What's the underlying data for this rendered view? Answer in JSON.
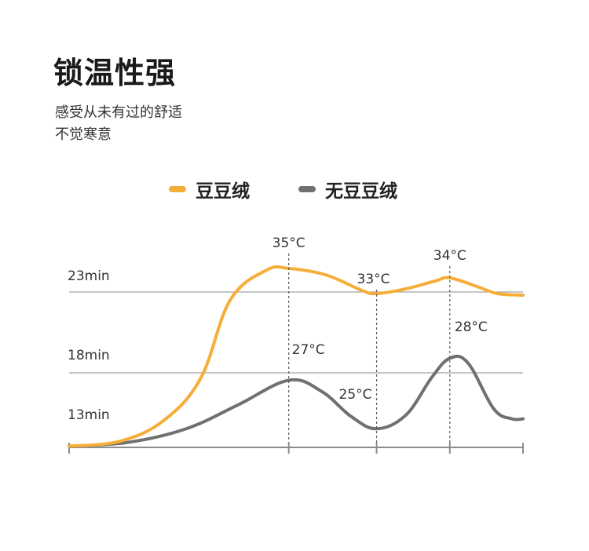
{
  "header": {
    "title": "锁温性强",
    "subtitle_lines": [
      "感受从未有过的舒适",
      "不觉寒意"
    ]
  },
  "legend": [
    {
      "label": "豆豆绒",
      "color": "#F6AE3A"
    },
    {
      "label": "无豆豆绒",
      "color": "#707070"
    }
  ],
  "chart_data": {
    "type": "line",
    "title": "",
    "xlabel": "",
    "ylabel": "",
    "y_ticks": [
      {
        "value": 13,
        "label": "13min"
      },
      {
        "value": 18,
        "label": "18min"
      },
      {
        "value": 23,
        "label": "23min"
      }
    ],
    "grid_lines_at": [
      18,
      23
    ],
    "x_marks": [
      {
        "x": 3,
        "label_top": "35°C",
        "label_bottom": "27°C"
      },
      {
        "x": 4.2,
        "label_top": "33°C",
        "label_bottom": "25°C"
      },
      {
        "x": 5.2,
        "label_top": "34°C",
        "label_bottom": "28°C"
      }
    ],
    "series": [
      {
        "name": "豆豆绒",
        "color": "#F6AE3A",
        "points": [
          [
            0,
            12.1
          ],
          [
            0.7,
            12.5
          ],
          [
            1.3,
            14.2
          ],
          [
            1.8,
            17.6
          ],
          [
            2.2,
            22.5
          ],
          [
            2.7,
            24.4
          ],
          [
            3.0,
            24.5
          ],
          [
            3.5,
            24.1
          ],
          [
            4.0,
            23.1
          ],
          [
            4.2,
            22.9
          ],
          [
            4.6,
            23.2
          ],
          [
            5.0,
            23.7
          ],
          [
            5.2,
            23.9
          ],
          [
            5.6,
            23.3
          ],
          [
            5.85,
            22.9
          ],
          [
            6.2,
            22.8
          ]
        ]
      },
      {
        "name": "无豆豆绒",
        "color": "#707070",
        "points": [
          [
            0,
            12.1
          ],
          [
            0.8,
            12.4
          ],
          [
            1.6,
            13.5
          ],
          [
            2.3,
            15.4
          ],
          [
            3.0,
            17.4
          ],
          [
            3.45,
            16.5
          ],
          [
            3.85,
            14.5
          ],
          [
            4.2,
            13.5
          ],
          [
            4.6,
            14.6
          ],
          [
            4.95,
            17.6
          ],
          [
            5.2,
            18.9
          ],
          [
            5.45,
            18.6
          ],
          [
            5.8,
            15.1
          ],
          [
            6.05,
            14.3
          ],
          [
            6.2,
            14.3
          ]
        ]
      }
    ],
    "x_range": [
      0,
      6.2
    ],
    "y_range": [
      12,
      26
    ],
    "grid": true,
    "legend_position": "top"
  }
}
